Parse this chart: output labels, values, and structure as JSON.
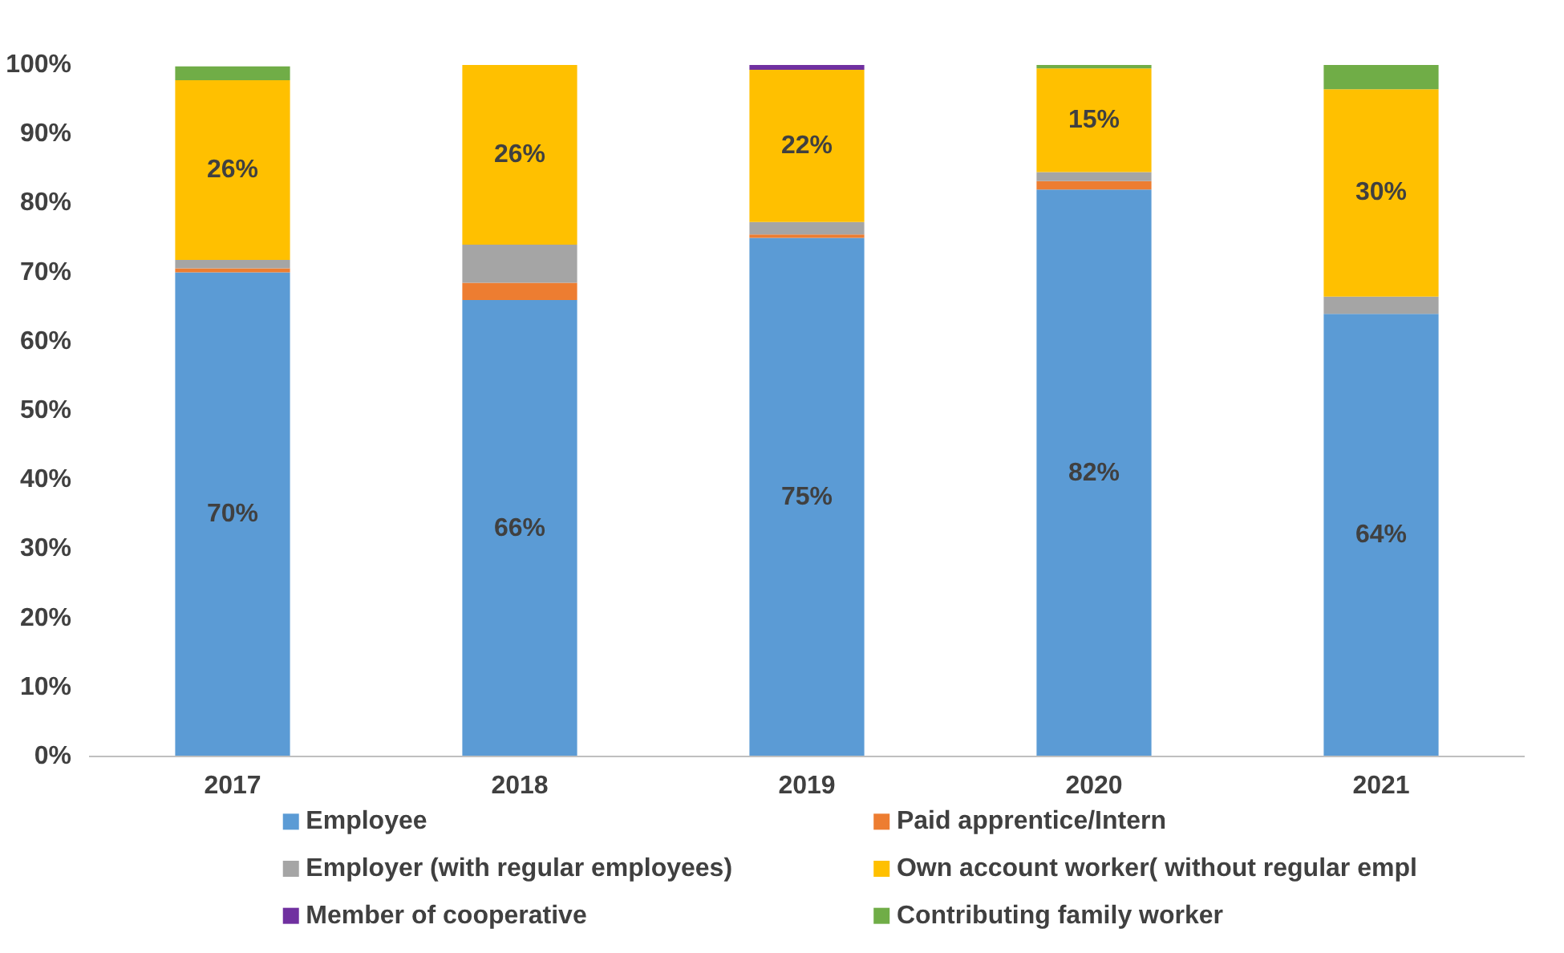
{
  "chart_data": {
    "type": "bar",
    "stacked": true,
    "categories": [
      "2017",
      "2018",
      "2019",
      "2020",
      "2021"
    ],
    "ylim": [
      0,
      100
    ],
    "yticks": [
      {
        "value": 0,
        "label": "0%"
      },
      {
        "value": 10,
        "label": "10%"
      },
      {
        "value": 20,
        "label": "20%"
      },
      {
        "value": 30,
        "label": "30%"
      },
      {
        "value": 40,
        "label": "40%"
      },
      {
        "value": 50,
        "label": "50%"
      },
      {
        "value": 60,
        "label": "60%"
      },
      {
        "value": 70,
        "label": "70%"
      },
      {
        "value": 80,
        "label": "80%"
      },
      {
        "value": 90,
        "label": "90%"
      },
      {
        "value": 100,
        "label": "100%"
      }
    ],
    "grid": false,
    "legend": "bottom",
    "series": [
      {
        "name": "Employee",
        "color": "#5b9bd5",
        "values": [
          70,
          66,
          75,
          82,
          64
        ],
        "value_labels": [
          "70%",
          "66%",
          "75%",
          "82%",
          "64%"
        ]
      },
      {
        "name": "Paid apprentice/Intern",
        "color": "#ed7d31",
        "values": [
          0.6,
          2.5,
          0.5,
          1.2,
          0
        ]
      },
      {
        "name": "Employer (with regular employees)",
        "color": "#a5a5a5",
        "values": [
          1.2,
          5.5,
          1.8,
          1.3,
          2.5
        ]
      },
      {
        "name": "Own account worker( without regular empl",
        "color": "#ffc000",
        "values": [
          26,
          26,
          22,
          15,
          30
        ],
        "value_labels": [
          "26%",
          "26%",
          "22%",
          "15%",
          "30%"
        ]
      },
      {
        "name": "Member of cooperative",
        "color": "#7030a0",
        "values": [
          0,
          0,
          0.7,
          0,
          0
        ]
      },
      {
        "name": "Contributing family worker",
        "color": "#70ad47",
        "values": [
          2,
          0,
          0,
          0.5,
          3.5
        ]
      }
    ]
  }
}
